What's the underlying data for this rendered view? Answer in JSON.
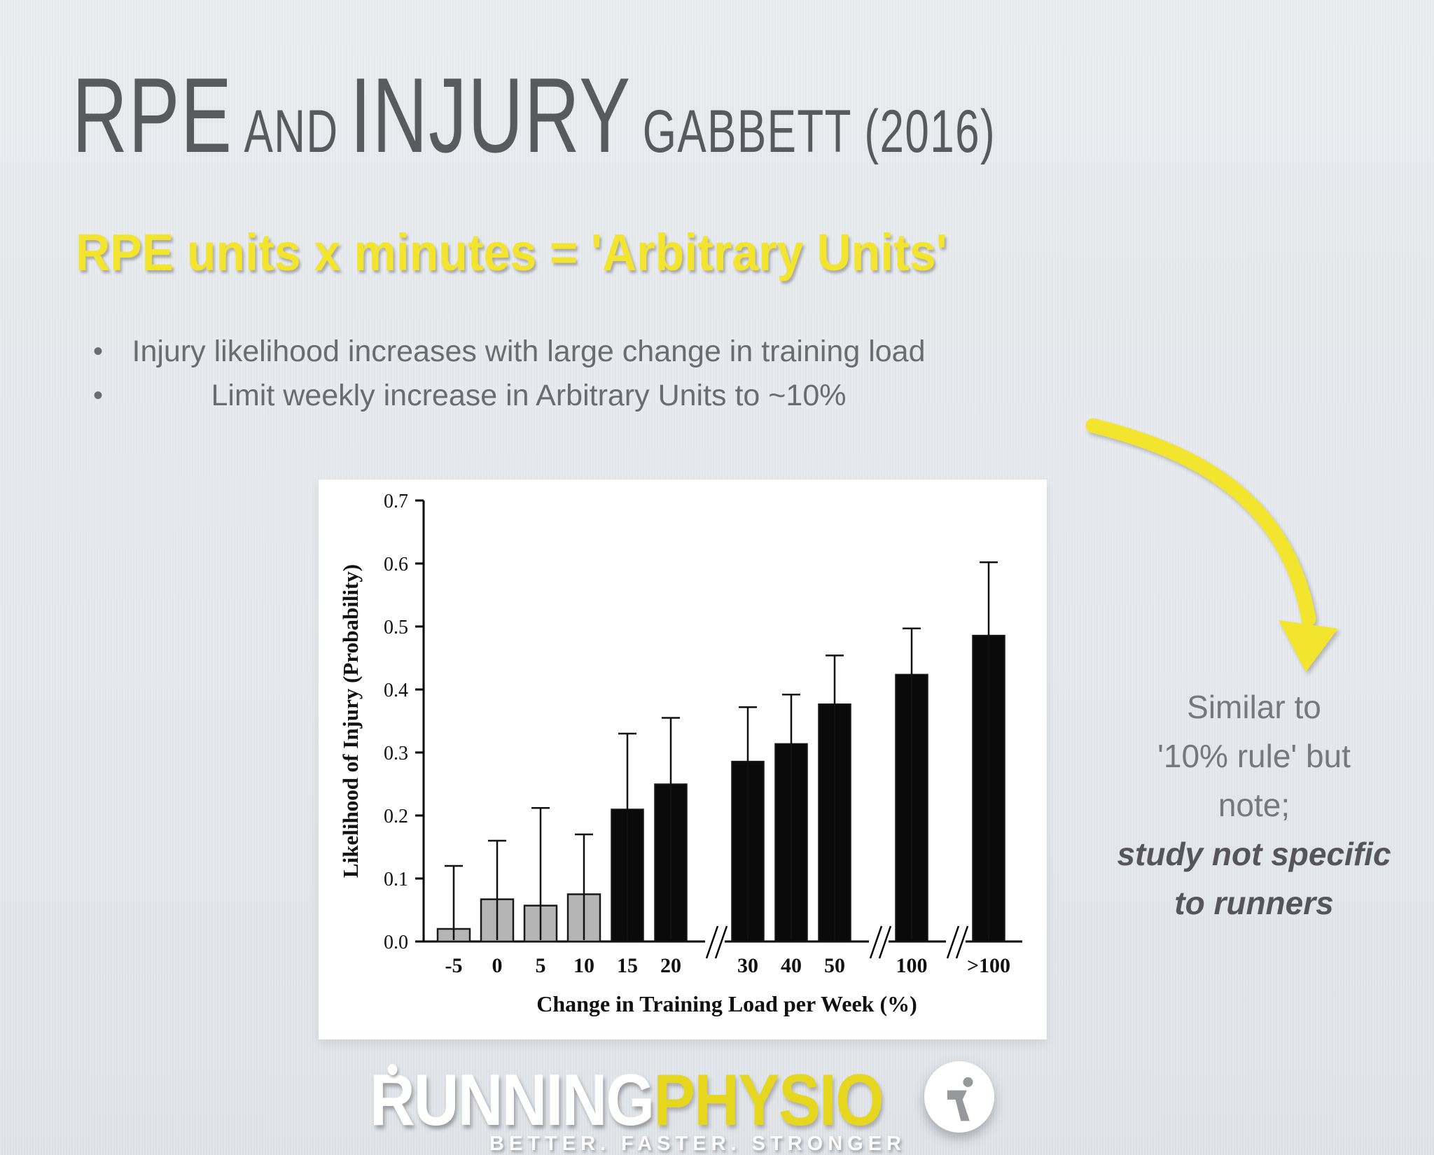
{
  "slide": {
    "title": {
      "word1": "RPE",
      "word2": "AND",
      "word3": "INJURY",
      "word4": "GABBETT (2016)"
    },
    "subtitle": "RPE units x minutes = 'Arbitrary Units'",
    "bullets": [
      "Injury likelihood increases with large change in training load",
      "Limit weekly increase in Arbitrary Units to ~10%"
    ],
    "bullet_glyph": "•",
    "note": {
      "light_lines": [
        "Similar to",
        "'10% rule' but",
        "note;"
      ],
      "bold_lines": [
        "study not specific",
        "to runners"
      ]
    }
  },
  "chart_data": {
    "type": "bar",
    "title": "",
    "xlabel": "Change in Training Load per Week (%)",
    "ylabel": "Likelihood of Injury (Probability)",
    "ylim": [
      0.0,
      0.7
    ],
    "yticks": [
      0.0,
      0.1,
      0.2,
      0.3,
      0.4,
      0.5,
      0.6,
      0.7
    ],
    "grid": false,
    "legend": null,
    "categories": [
      "-5",
      "0",
      "5",
      "10",
      "15",
      "20",
      "30",
      "40",
      "50",
      "100",
      ">100"
    ],
    "values": [
      0.02,
      0.067,
      0.057,
      0.075,
      0.21,
      0.25,
      0.286,
      0.314,
      0.377,
      0.424,
      0.486
    ],
    "error_upper": [
      0.12,
      0.16,
      0.212,
      0.17,
      0.33,
      0.355,
      0.372,
      0.392,
      0.454,
      0.497,
      0.602
    ],
    "bar_styles": [
      "gray",
      "gray",
      "gray",
      "gray",
      "black",
      "black",
      "black",
      "black",
      "black",
      "black",
      "black"
    ],
    "x_axis_breaks_after_index": [
      5,
      8,
      9
    ]
  },
  "logo": {
    "brand_white": "RUNNING",
    "brand_yellow": "PHYSIO",
    "tagline": "BETTER. FASTER. STRONGER"
  },
  "colors": {
    "background_top": "#e9ecef",
    "background_bottom": "#e0e4e8",
    "highlight_yellow": "#f3e52d",
    "logo_yellow": "#e6d71e",
    "title_gray": "#595a5e",
    "body_gray": "#6b6c70",
    "note_light_gray": "#77787c",
    "note_dark_gray": "#56565a",
    "bar_black": "#0a0a0a",
    "bar_gray": "#b5b5b5",
    "chart_panel": "#ffffff"
  }
}
